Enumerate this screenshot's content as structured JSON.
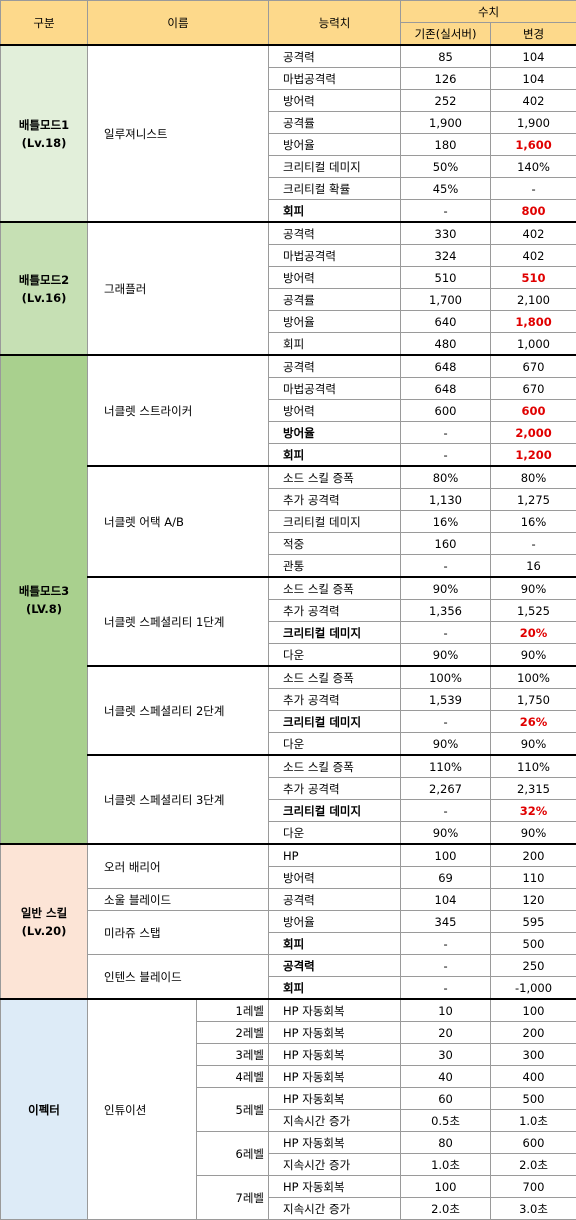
{
  "header": {
    "category": "구분",
    "name": "이름",
    "stat": "능력치",
    "value": "수치",
    "old": "기존(실서버)",
    "new": "변경"
  },
  "sections": [
    {
      "name": "배틀모드1",
      "level": "(Lv.18)",
      "color": "#e2efda",
      "groups": [
        {
          "name": "일루져니스트",
          "rows": [
            {
              "stat": "공격력",
              "old": "85",
              "new": "104"
            },
            {
              "stat": "마법공격력",
              "old": "126",
              "new": "104"
            },
            {
              "stat": "방어력",
              "old": "252",
              "new": "402"
            },
            {
              "stat": "공격률",
              "old": "1,900",
              "new": "1,900"
            },
            {
              "stat": "방어율",
              "old": "180",
              "new": "1,600",
              "new_red": true
            },
            {
              "stat": "크리티컬 데미지",
              "old": "50%",
              "new": "140%"
            },
            {
              "stat": "크리티컬 확률",
              "old": "45%",
              "new": "-"
            },
            {
              "stat": "회피",
              "old": "-",
              "new": "800",
              "stat_bold": true,
              "new_red": true
            }
          ]
        }
      ]
    },
    {
      "name": "배틀모드2",
      "level": "(Lv.16)",
      "color": "#c6e0b4",
      "groups": [
        {
          "name": "그래플러",
          "rows": [
            {
              "stat": "공격력",
              "old": "330",
              "new": "402"
            },
            {
              "stat": "마법공격력",
              "old": "324",
              "new": "402"
            },
            {
              "stat": "방어력",
              "old": "510",
              "new": "510",
              "new_red": true
            },
            {
              "stat": "공격률",
              "old": "1,700",
              "new": "2,100"
            },
            {
              "stat": "방어율",
              "old": "640",
              "new": "1,800",
              "new_red": true
            },
            {
              "stat": "회피",
              "old": "480",
              "new": "1,000"
            }
          ]
        }
      ]
    },
    {
      "name": "배틀모드3",
      "level": "(LV.8)",
      "color": "#a9d08e",
      "groups": [
        {
          "name": "너클렛 스트라이커",
          "rows": [
            {
              "stat": "공격력",
              "old": "648",
              "new": "670"
            },
            {
              "stat": "마법공격력",
              "old": "648",
              "new": "670"
            },
            {
              "stat": "방어력",
              "old": "600",
              "new": "600",
              "new_red": true
            },
            {
              "stat": "방어율",
              "old": "-",
              "new": "2,000",
              "stat_bold": true,
              "new_red": true
            },
            {
              "stat": "회피",
              "old": "-",
              "new": "1,200",
              "stat_bold": true,
              "new_red": true
            }
          ]
        },
        {
          "name": "너클렛 어택 A/B",
          "rows": [
            {
              "stat": "소드 스킬 증폭",
              "old": "80%",
              "new": "80%"
            },
            {
              "stat": "추가 공격력",
              "old": "1,130",
              "new": "1,275"
            },
            {
              "stat": "크리티컬 데미지",
              "old": "16%",
              "new": "16%"
            },
            {
              "stat": "적중",
              "old": "160",
              "new": "-"
            },
            {
              "stat": "관통",
              "old": "-",
              "new": "16"
            }
          ]
        },
        {
          "name": "너클렛 스페셜리티 1단계",
          "rows": [
            {
              "stat": "소드 스킬 증폭",
              "old": "90%",
              "new": "90%"
            },
            {
              "stat": "추가 공격력",
              "old": "1,356",
              "new": "1,525"
            },
            {
              "stat": "크리티컬 데미지",
              "old": "-",
              "new": "20%",
              "stat_bold": true,
              "new_red": true
            },
            {
              "stat": "다운",
              "old": "90%",
              "new": "90%"
            }
          ]
        },
        {
          "name": "너클렛 스페셜리티 2단계",
          "rows": [
            {
              "stat": "소드 스킬 증폭",
              "old": "100%",
              "new": "100%"
            },
            {
              "stat": "추가 공격력",
              "old": "1,539",
              "new": "1,750"
            },
            {
              "stat": "크리티컬 데미지",
              "old": "-",
              "new": "26%",
              "stat_bold": true,
              "new_red": true
            },
            {
              "stat": "다운",
              "old": "90%",
              "new": "90%"
            }
          ]
        },
        {
          "name": "너클렛 스페셜리티 3단계",
          "rows": [
            {
              "stat": "소드 스킬 증폭",
              "old": "110%",
              "new": "110%"
            },
            {
              "stat": "추가 공격력",
              "old": "2,267",
              "new": "2,315"
            },
            {
              "stat": "크리티컬 데미지",
              "old": "-",
              "new": "32%",
              "stat_bold": true,
              "new_red": true
            },
            {
              "stat": "다운",
              "old": "90%",
              "new": "90%"
            }
          ]
        }
      ]
    },
    {
      "name": "일반 스킬",
      "level": "(Lv.20)",
      "color": "#fce4d6",
      "groups": [
        {
          "name": "오러 배리어",
          "rows": [
            {
              "stat": "HP",
              "old": "100",
              "new": "200"
            },
            {
              "stat": "방어력",
              "old": "69",
              "new": "110"
            }
          ]
        },
        {
          "name": "소울 블레이드",
          "rows": [
            {
              "stat": "공격력",
              "old": "104",
              "new": "120"
            }
          ]
        },
        {
          "name": "미라쥬 스탭",
          "rows": [
            {
              "stat": "방어율",
              "old": "345",
              "new": "595"
            },
            {
              "stat": "회피",
              "old": "-",
              "new": "500",
              "stat_bold": true
            }
          ]
        },
        {
          "name": "인텐스 블레이드",
          "rows": [
            {
              "stat": "공격력",
              "old": "-",
              "new": "250",
              "stat_bold": true
            },
            {
              "stat": "회피",
              "old": "-",
              "new": "-1,000",
              "stat_bold": true
            }
          ]
        }
      ]
    },
    {
      "name": "이펙터",
      "color": "#ddebf7",
      "groups": [
        {
          "name": "인튜이션",
          "levels": [
            {
              "label": "1레벨",
              "rows": [
                {
                  "stat": "HP 자동회복",
                  "old": "10",
                  "new": "100"
                }
              ]
            },
            {
              "label": "2레벨",
              "rows": [
                {
                  "stat": "HP 자동회복",
                  "old": "20",
                  "new": "200"
                }
              ]
            },
            {
              "label": "3레벨",
              "rows": [
                {
                  "stat": "HP 자동회복",
                  "old": "30",
                  "new": "300"
                }
              ]
            },
            {
              "label": "4레벨",
              "rows": [
                {
                  "stat": "HP 자동회복",
                  "old": "40",
                  "new": "400"
                }
              ]
            },
            {
              "label": "5레벨",
              "rows": [
                {
                  "stat": "HP 자동회복",
                  "old": "60",
                  "new": "500"
                },
                {
                  "stat": "지속시간 증가",
                  "old": "0.5초",
                  "new": "1.0초"
                }
              ]
            },
            {
              "label": "6레벨",
              "rows": [
                {
                  "stat": "HP 자동회복",
                  "old": "80",
                  "new": "600"
                },
                {
                  "stat": "지속시간 증가",
                  "old": "1.0초",
                  "new": "2.0초"
                }
              ]
            },
            {
              "label": "7레벨",
              "rows": [
                {
                  "stat": "HP 자동회복",
                  "old": "100",
                  "new": "700"
                },
                {
                  "stat": "지속시간 증가",
                  "old": "2.0초",
                  "new": "3.0초"
                }
              ]
            }
          ]
        }
      ]
    }
  ]
}
